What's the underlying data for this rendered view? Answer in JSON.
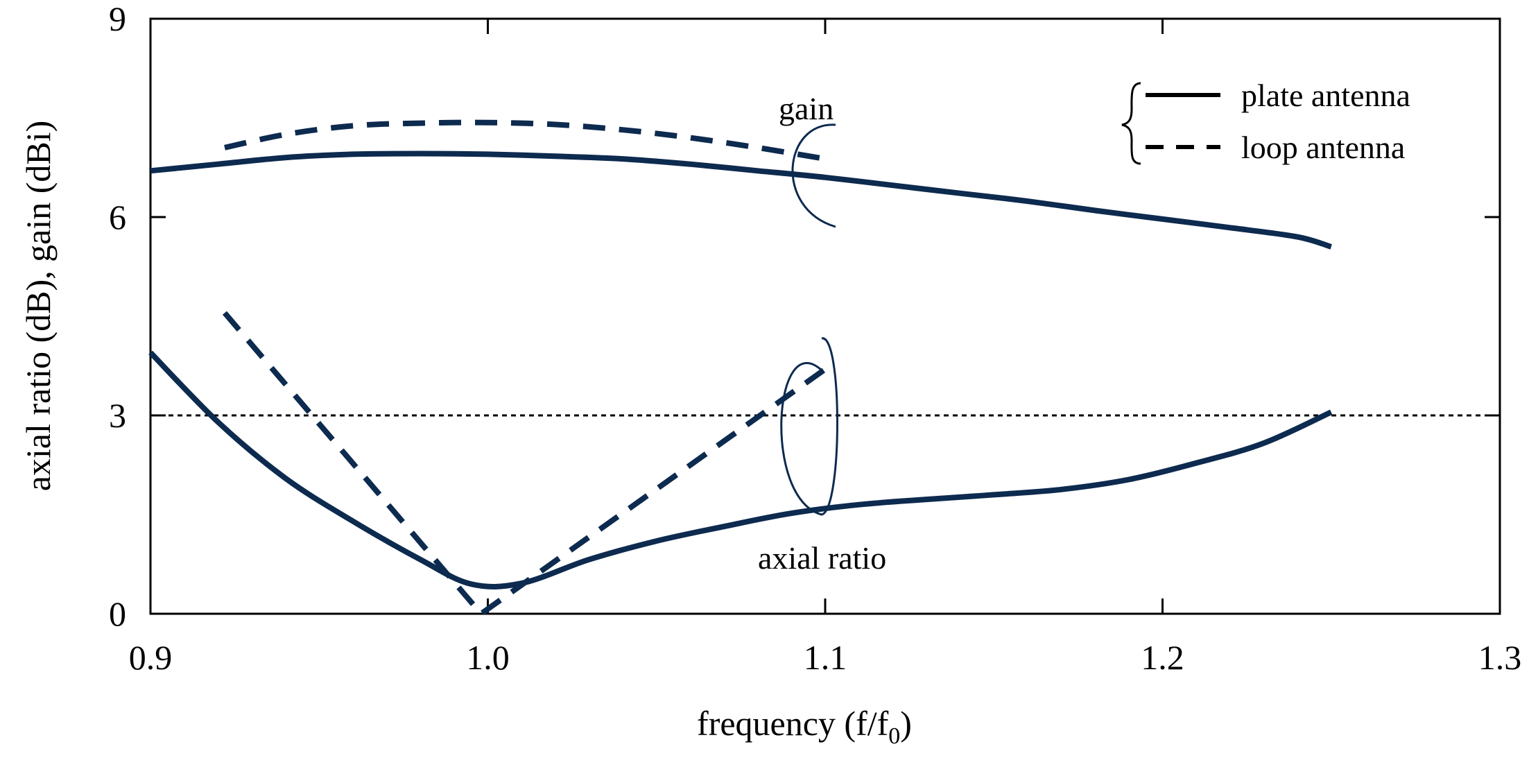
{
  "chart_data": {
    "type": "line",
    "title": "",
    "xlabel": "frequency (f/f",
    "xlabel_sub": "0",
    "xlabel_end": ")",
    "ylabel": "axial ratio (dB), gain (dBi)",
    "xlim": [
      0.9,
      1.3
    ],
    "ylim": [
      0,
      9
    ],
    "xticks": [
      0.9,
      1.0,
      1.1,
      1.2,
      1.3
    ],
    "xtick_labels": [
      "0.9",
      "1.0",
      "1.1",
      "1.2",
      "1.3"
    ],
    "yticks": [
      0,
      3,
      6,
      9
    ],
    "ytick_labels": [
      "0",
      "3",
      "6",
      "9"
    ],
    "grid": false,
    "reference_line": {
      "y": 3,
      "style": "dotted"
    },
    "colors": {
      "series": "#0d2a4f",
      "axis": "#000000"
    },
    "series": [
      {
        "name": "plate antenna gain",
        "style": "solid",
        "x": [
          0.9,
          0.92,
          0.94,
          0.96,
          0.98,
          1.0,
          1.02,
          1.04,
          1.06,
          1.08,
          1.1,
          1.12,
          1.14,
          1.16,
          1.18,
          1.2,
          1.22,
          1.24,
          1.25
        ],
        "y": [
          6.7,
          6.8,
          6.9,
          6.95,
          6.96,
          6.95,
          6.92,
          6.88,
          6.8,
          6.7,
          6.6,
          6.48,
          6.36,
          6.24,
          6.1,
          5.97,
          5.84,
          5.7,
          5.55
        ]
      },
      {
        "name": "loop antenna gain",
        "style": "dashed",
        "x": [
          0.922,
          0.94,
          0.96,
          0.98,
          1.0,
          1.02,
          1.04,
          1.06,
          1.08,
          1.1
        ],
        "y": [
          7.05,
          7.25,
          7.38,
          7.42,
          7.43,
          7.4,
          7.32,
          7.2,
          7.05,
          6.88
        ]
      },
      {
        "name": "plate antenna axial ratio",
        "style": "solid",
        "x": [
          0.9,
          0.92,
          0.94,
          0.96,
          0.98,
          0.995,
          1.01,
          1.03,
          1.05,
          1.07,
          1.09,
          1.11,
          1.13,
          1.15,
          1.17,
          1.19,
          1.21,
          1.23,
          1.25
        ],
        "y": [
          3.95,
          2.9,
          2.05,
          1.4,
          0.82,
          0.45,
          0.46,
          0.82,
          1.1,
          1.32,
          1.52,
          1.65,
          1.73,
          1.8,
          1.88,
          2.03,
          2.28,
          2.58,
          3.05
        ]
      },
      {
        "name": "loop antenna axial ratio",
        "style": "dashed",
        "x": [
          0.922,
          0.998,
          1.1
        ],
        "y": [
          4.55,
          0.0,
          3.7
        ]
      }
    ],
    "annotations": [
      "gain",
      "axial ratio"
    ],
    "legend": {
      "placement": "top-right",
      "entries": [
        {
          "label": "plate antenna",
          "style": "solid"
        },
        {
          "label": "loop antenna",
          "style": "dashed"
        }
      ]
    }
  }
}
